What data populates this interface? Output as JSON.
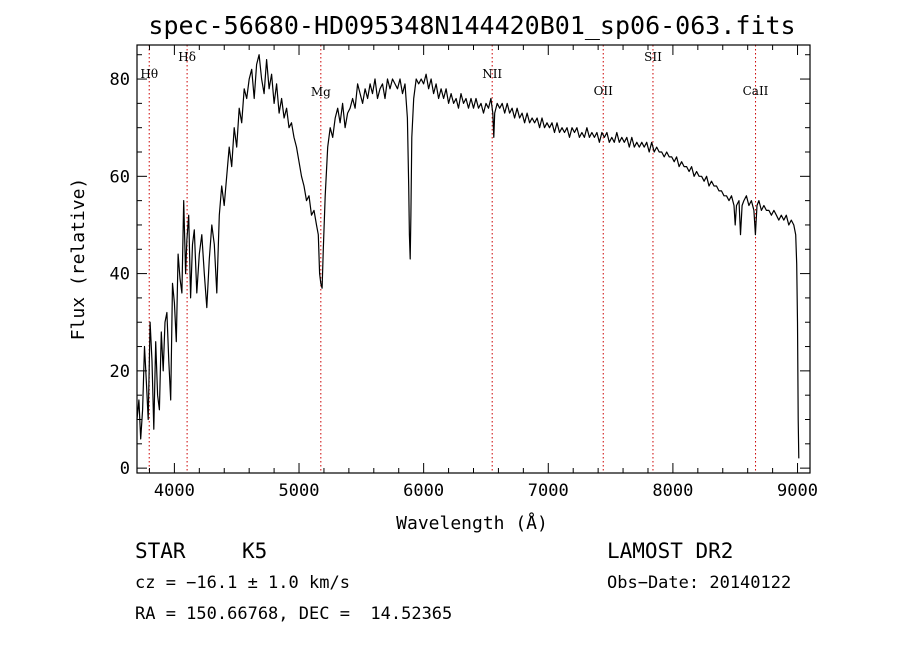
{
  "chart_data": {
    "type": "line",
    "title": "spec-56680-HD095348N144420B01_sp06-063.fits",
    "xlabel": "Wavelength (Å)",
    "ylabel": "Flux (relative)",
    "xlim": [
      3700,
      9100
    ],
    "ylim": [
      -1,
      87
    ],
    "xticks": [
      4000,
      5000,
      6000,
      7000,
      8000,
      9000
    ],
    "yticks": [
      0,
      20,
      40,
      60,
      80
    ],
    "grid": false,
    "series": [
      {
        "points": [
          [
            3700,
            10
          ],
          [
            3715,
            14
          ],
          [
            3730,
            6
          ],
          [
            3745,
            12
          ],
          [
            3760,
            25
          ],
          [
            3775,
            18
          ],
          [
            3790,
            10
          ],
          [
            3805,
            30
          ],
          [
            3820,
            22
          ],
          [
            3835,
            8
          ],
          [
            3850,
            26
          ],
          [
            3865,
            15
          ],
          [
            3880,
            12
          ],
          [
            3895,
            28
          ],
          [
            3910,
            20
          ],
          [
            3925,
            30
          ],
          [
            3940,
            32
          ],
          [
            3955,
            22
          ],
          [
            3970,
            14
          ],
          [
            3985,
            38
          ],
          [
            4000,
            34
          ],
          [
            4015,
            26
          ],
          [
            4030,
            44
          ],
          [
            4045,
            39
          ],
          [
            4060,
            36
          ],
          [
            4075,
            55
          ],
          [
            4090,
            40
          ],
          [
            4100,
            47
          ],
          [
            4115,
            52
          ],
          [
            4130,
            35
          ],
          [
            4145,
            46
          ],
          [
            4160,
            49
          ],
          [
            4180,
            36
          ],
          [
            4200,
            44
          ],
          [
            4220,
            48
          ],
          [
            4240,
            40
          ],
          [
            4260,
            33
          ],
          [
            4280,
            43
          ],
          [
            4300,
            50
          ],
          [
            4320,
            46
          ],
          [
            4340,
            36
          ],
          [
            4360,
            52
          ],
          [
            4380,
            58
          ],
          [
            4400,
            54
          ],
          [
            4420,
            60
          ],
          [
            4440,
            66
          ],
          [
            4460,
            62
          ],
          [
            4480,
            70
          ],
          [
            4500,
            66
          ],
          [
            4520,
            74
          ],
          [
            4540,
            71
          ],
          [
            4560,
            78
          ],
          [
            4580,
            76
          ],
          [
            4600,
            80
          ],
          [
            4620,
            82
          ],
          [
            4640,
            76
          ],
          [
            4660,
            83
          ],
          [
            4680,
            85
          ],
          [
            4700,
            80
          ],
          [
            4720,
            77
          ],
          [
            4740,
            84
          ],
          [
            4760,
            78
          ],
          [
            4780,
            81
          ],
          [
            4800,
            75
          ],
          [
            4820,
            79
          ],
          [
            4840,
            73
          ],
          [
            4860,
            76
          ],
          [
            4880,
            72
          ],
          [
            4900,
            74
          ],
          [
            4920,
            70
          ],
          [
            4940,
            71
          ],
          [
            4960,
            68
          ],
          [
            4980,
            66
          ],
          [
            5000,
            63
          ],
          [
            5020,
            60
          ],
          [
            5040,
            58
          ],
          [
            5060,
            55
          ],
          [
            5080,
            56
          ],
          [
            5100,
            52
          ],
          [
            5120,
            53
          ],
          [
            5140,
            50
          ],
          [
            5155,
            48
          ],
          [
            5165,
            40
          ],
          [
            5175,
            38
          ],
          [
            5185,
            37
          ],
          [
            5195,
            45
          ],
          [
            5210,
            56
          ],
          [
            5230,
            66
          ],
          [
            5250,
            70
          ],
          [
            5270,
            68
          ],
          [
            5290,
            72
          ],
          [
            5310,
            74
          ],
          [
            5330,
            71
          ],
          [
            5350,
            75
          ],
          [
            5370,
            70
          ],
          [
            5390,
            73
          ],
          [
            5410,
            74
          ],
          [
            5430,
            76
          ],
          [
            5450,
            74
          ],
          [
            5470,
            79
          ],
          [
            5490,
            77
          ],
          [
            5510,
            75
          ],
          [
            5530,
            78
          ],
          [
            5550,
            76
          ],
          [
            5570,
            79
          ],
          [
            5590,
            77
          ],
          [
            5610,
            80
          ],
          [
            5630,
            76
          ],
          [
            5650,
            78
          ],
          [
            5670,
            79
          ],
          [
            5690,
            76
          ],
          [
            5710,
            80
          ],
          [
            5730,
            78
          ],
          [
            5750,
            80
          ],
          [
            5770,
            79
          ],
          [
            5790,
            78
          ],
          [
            5810,
            80
          ],
          [
            5830,
            77
          ],
          [
            5850,
            79
          ],
          [
            5870,
            72
          ],
          [
            5880,
            58
          ],
          [
            5886,
            48
          ],
          [
            5892,
            43
          ],
          [
            5898,
            52
          ],
          [
            5905,
            68
          ],
          [
            5920,
            76
          ],
          [
            5940,
            80
          ],
          [
            5960,
            79
          ],
          [
            5980,
            80
          ],
          [
            6000,
            79
          ],
          [
            6020,
            81
          ],
          [
            6040,
            78
          ],
          [
            6060,
            80
          ],
          [
            6080,
            77
          ],
          [
            6100,
            79
          ],
          [
            6120,
            76
          ],
          [
            6140,
            78
          ],
          [
            6160,
            76
          ],
          [
            6180,
            78
          ],
          [
            6200,
            75
          ],
          [
            6220,
            77
          ],
          [
            6240,
            75
          ],
          [
            6260,
            76
          ],
          [
            6280,
            74
          ],
          [
            6300,
            77
          ],
          [
            6320,
            75
          ],
          [
            6340,
            76
          ],
          [
            6360,
            74
          ],
          [
            6380,
            76
          ],
          [
            6400,
            74
          ],
          [
            6420,
            76
          ],
          [
            6440,
            74
          ],
          [
            6460,
            75
          ],
          [
            6480,
            73
          ],
          [
            6500,
            75
          ],
          [
            6520,
            74
          ],
          [
            6540,
            76
          ],
          [
            6555,
            73
          ],
          [
            6563,
            68
          ],
          [
            6570,
            73
          ],
          [
            6590,
            75
          ],
          [
            6610,
            74
          ],
          [
            6630,
            75
          ],
          [
            6650,
            73
          ],
          [
            6670,
            75
          ],
          [
            6690,
            73
          ],
          [
            6710,
            74
          ],
          [
            6730,
            72
          ],
          [
            6750,
            74
          ],
          [
            6770,
            72
          ],
          [
            6790,
            73
          ],
          [
            6810,
            71
          ],
          [
            6830,
            73
          ],
          [
            6850,
            71
          ],
          [
            6870,
            72
          ],
          [
            6890,
            71
          ],
          [
            6910,
            72
          ],
          [
            6930,
            70
          ],
          [
            6950,
            72
          ],
          [
            6970,
            70
          ],
          [
            6990,
            71
          ],
          [
            7010,
            70
          ],
          [
            7030,
            71
          ],
          [
            7050,
            69
          ],
          [
            7070,
            71
          ],
          [
            7090,
            69
          ],
          [
            7110,
            70
          ],
          [
            7130,
            69
          ],
          [
            7150,
            70
          ],
          [
            7170,
            68
          ],
          [
            7190,
            70
          ],
          [
            7210,
            69
          ],
          [
            7230,
            70
          ],
          [
            7250,
            68
          ],
          [
            7270,
            69
          ],
          [
            7290,
            68
          ],
          [
            7310,
            70
          ],
          [
            7330,
            68
          ],
          [
            7350,
            69
          ],
          [
            7370,
            68
          ],
          [
            7390,
            69
          ],
          [
            7410,
            67
          ],
          [
            7430,
            69
          ],
          [
            7450,
            68
          ],
          [
            7470,
            69
          ],
          [
            7490,
            67
          ],
          [
            7510,
            68
          ],
          [
            7530,
            67
          ],
          [
            7550,
            69
          ],
          [
            7570,
            67
          ],
          [
            7590,
            68
          ],
          [
            7610,
            67
          ],
          [
            7630,
            68
          ],
          [
            7650,
            66
          ],
          [
            7670,
            68
          ],
          [
            7690,
            66
          ],
          [
            7710,
            67
          ],
          [
            7730,
            66
          ],
          [
            7750,
            67
          ],
          [
            7770,
            66
          ],
          [
            7790,
            67
          ],
          [
            7810,
            65
          ],
          [
            7830,
            67
          ],
          [
            7850,
            65
          ],
          [
            7870,
            66
          ],
          [
            7890,
            65
          ],
          [
            7910,
            65
          ],
          [
            7930,
            64
          ],
          [
            7950,
            65
          ],
          [
            7970,
            64
          ],
          [
            7990,
            64
          ],
          [
            8010,
            63
          ],
          [
            8030,
            64
          ],
          [
            8050,
            62
          ],
          [
            8070,
            63
          ],
          [
            8090,
            62
          ],
          [
            8110,
            62
          ],
          [
            8130,
            61
          ],
          [
            8150,
            62
          ],
          [
            8170,
            60
          ],
          [
            8190,
            61
          ],
          [
            8210,
            60
          ],
          [
            8230,
            60
          ],
          [
            8250,
            59
          ],
          [
            8270,
            60
          ],
          [
            8290,
            58
          ],
          [
            8310,
            59
          ],
          [
            8330,
            58
          ],
          [
            8350,
            58
          ],
          [
            8370,
            57
          ],
          [
            8390,
            57
          ],
          [
            8410,
            56
          ],
          [
            8430,
            56
          ],
          [
            8450,
            55
          ],
          [
            8470,
            56
          ],
          [
            8490,
            54
          ],
          [
            8500,
            50
          ],
          [
            8510,
            54
          ],
          [
            8530,
            55
          ],
          [
            8542,
            48
          ],
          [
            8555,
            54
          ],
          [
            8570,
            55
          ],
          [
            8590,
            56
          ],
          [
            8610,
            54
          ],
          [
            8630,
            55
          ],
          [
            8650,
            53
          ],
          [
            8662,
            48
          ],
          [
            8675,
            54
          ],
          [
            8690,
            55
          ],
          [
            8710,
            53
          ],
          [
            8730,
            54
          ],
          [
            8750,
            53
          ],
          [
            8770,
            53
          ],
          [
            8790,
            52
          ],
          [
            8810,
            53
          ],
          [
            8830,
            52
          ],
          [
            8850,
            51
          ],
          [
            8870,
            52
          ],
          [
            8890,
            51
          ],
          [
            8910,
            52
          ],
          [
            8930,
            50
          ],
          [
            8950,
            51
          ],
          [
            8970,
            50
          ],
          [
            8985,
            48
          ],
          [
            8993,
            42
          ],
          [
            9000,
            30
          ],
          [
            9005,
            10
          ],
          [
            9010,
            2
          ]
        ]
      }
    ],
    "line_markers": [
      {
        "label": "Hθ",
        "x": 3798
      },
      {
        "label": "Hδ",
        "x": 4102
      },
      {
        "label": "Mg",
        "x": 5175
      },
      {
        "label": "NII",
        "x": 6550
      },
      {
        "label": "OII",
        "x": 7441
      },
      {
        "label": "SII",
        "x": 7840
      },
      {
        "label": "CaII",
        "x": 8663
      }
    ]
  },
  "info": {
    "object_class": "STAR",
    "subclass": "K5",
    "survey": "LAMOST DR2",
    "cz": "cz = −16.1 ± 1.0 km/s",
    "obs_date": "Obs−Date: 20140122",
    "coords": "RA = 150.66768, DEC =  14.52365"
  },
  "colors": {
    "spectrum": "#000000",
    "marker_lines": "#cc0000",
    "axes": "#000000",
    "background": "#ffffff"
  }
}
